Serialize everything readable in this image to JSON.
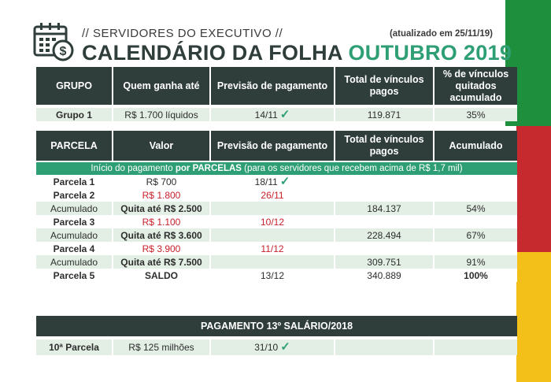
{
  "colors": {
    "dark": "#2f3e3b",
    "green": "#2e9e74",
    "light_row": "#e3efe5",
    "red": "#c8202a",
    "flag_green": "#1d8f3d",
    "flag_red": "#c62a2e",
    "flag_yellow": "#f3c019"
  },
  "header": {
    "icon": "calendar-dollar-icon",
    "subtitle": "// SERVIDORES DO EXECUTIVO //",
    "updated": "(atualizado em 25/11/19)",
    "title_main": "CALENDÁRIO DA FOLHA",
    "title_month": "OUTUBRO 2019"
  },
  "table1": {
    "headers": [
      "GRUPO",
      "Quem ganha até",
      "Previsão de pagamento",
      "Total de vínculos pagos",
      "% de vínculos quitados acumulado"
    ],
    "row": {
      "grupo": "Grupo 1",
      "quem": "R$ 1.700 líquidos",
      "previsao": "14/11",
      "total": "119.871",
      "pct": "35%"
    }
  },
  "table2": {
    "headers": [
      "PARCELA",
      "Valor",
      "Previsão de pagamento",
      "Total de vínculos pagos",
      "Acumulado"
    ],
    "banner_pre": "Início do pagamento ",
    "banner_strong1": "por PARCELAS",
    "banner_post": " (para os servidores que recebem acima de R$ 1,7 mil)",
    "rows": [
      {
        "parcela": "Parcela 1",
        "valor": "R$ 700",
        "previsao": "18/11",
        "total": "",
        "acum": ""
      },
      {
        "parcela": "Parcela 2",
        "valor": "R$ 1.800",
        "previsao": "26/11",
        "total": "",
        "acum": ""
      },
      {
        "parcela": "Acumulado",
        "valor": "Quita até R$ 2.500",
        "previsao": "",
        "total": "184.137",
        "acum": "54%"
      },
      {
        "parcela": "Parcela 3",
        "valor": "R$ 1.100",
        "previsao": "10/12",
        "total": "",
        "acum": ""
      },
      {
        "parcela": "Acumulado",
        "valor": "Quita até R$ 3.600",
        "previsao": "",
        "total": "228.494",
        "acum": "67%"
      },
      {
        "parcela": "Parcela 4",
        "valor": "R$ 3.900",
        "previsao": "11/12",
        "total": "",
        "acum": ""
      },
      {
        "parcela": "Acumulado",
        "valor": "Quita até R$ 7.500",
        "previsao": "",
        "total": "309.751",
        "acum": "91%"
      },
      {
        "parcela": "Parcela 5",
        "valor": "SALDO",
        "previsao": "13/12",
        "total": "340.889",
        "acum": "100%"
      }
    ]
  },
  "table3": {
    "header": "PAGAMENTO 13º SALÁRIO/2018",
    "row": {
      "parcela": "10ª Parcela",
      "valor": "R$ 125 milhões",
      "previsao": "31/10"
    }
  },
  "check_glyph": "✓"
}
